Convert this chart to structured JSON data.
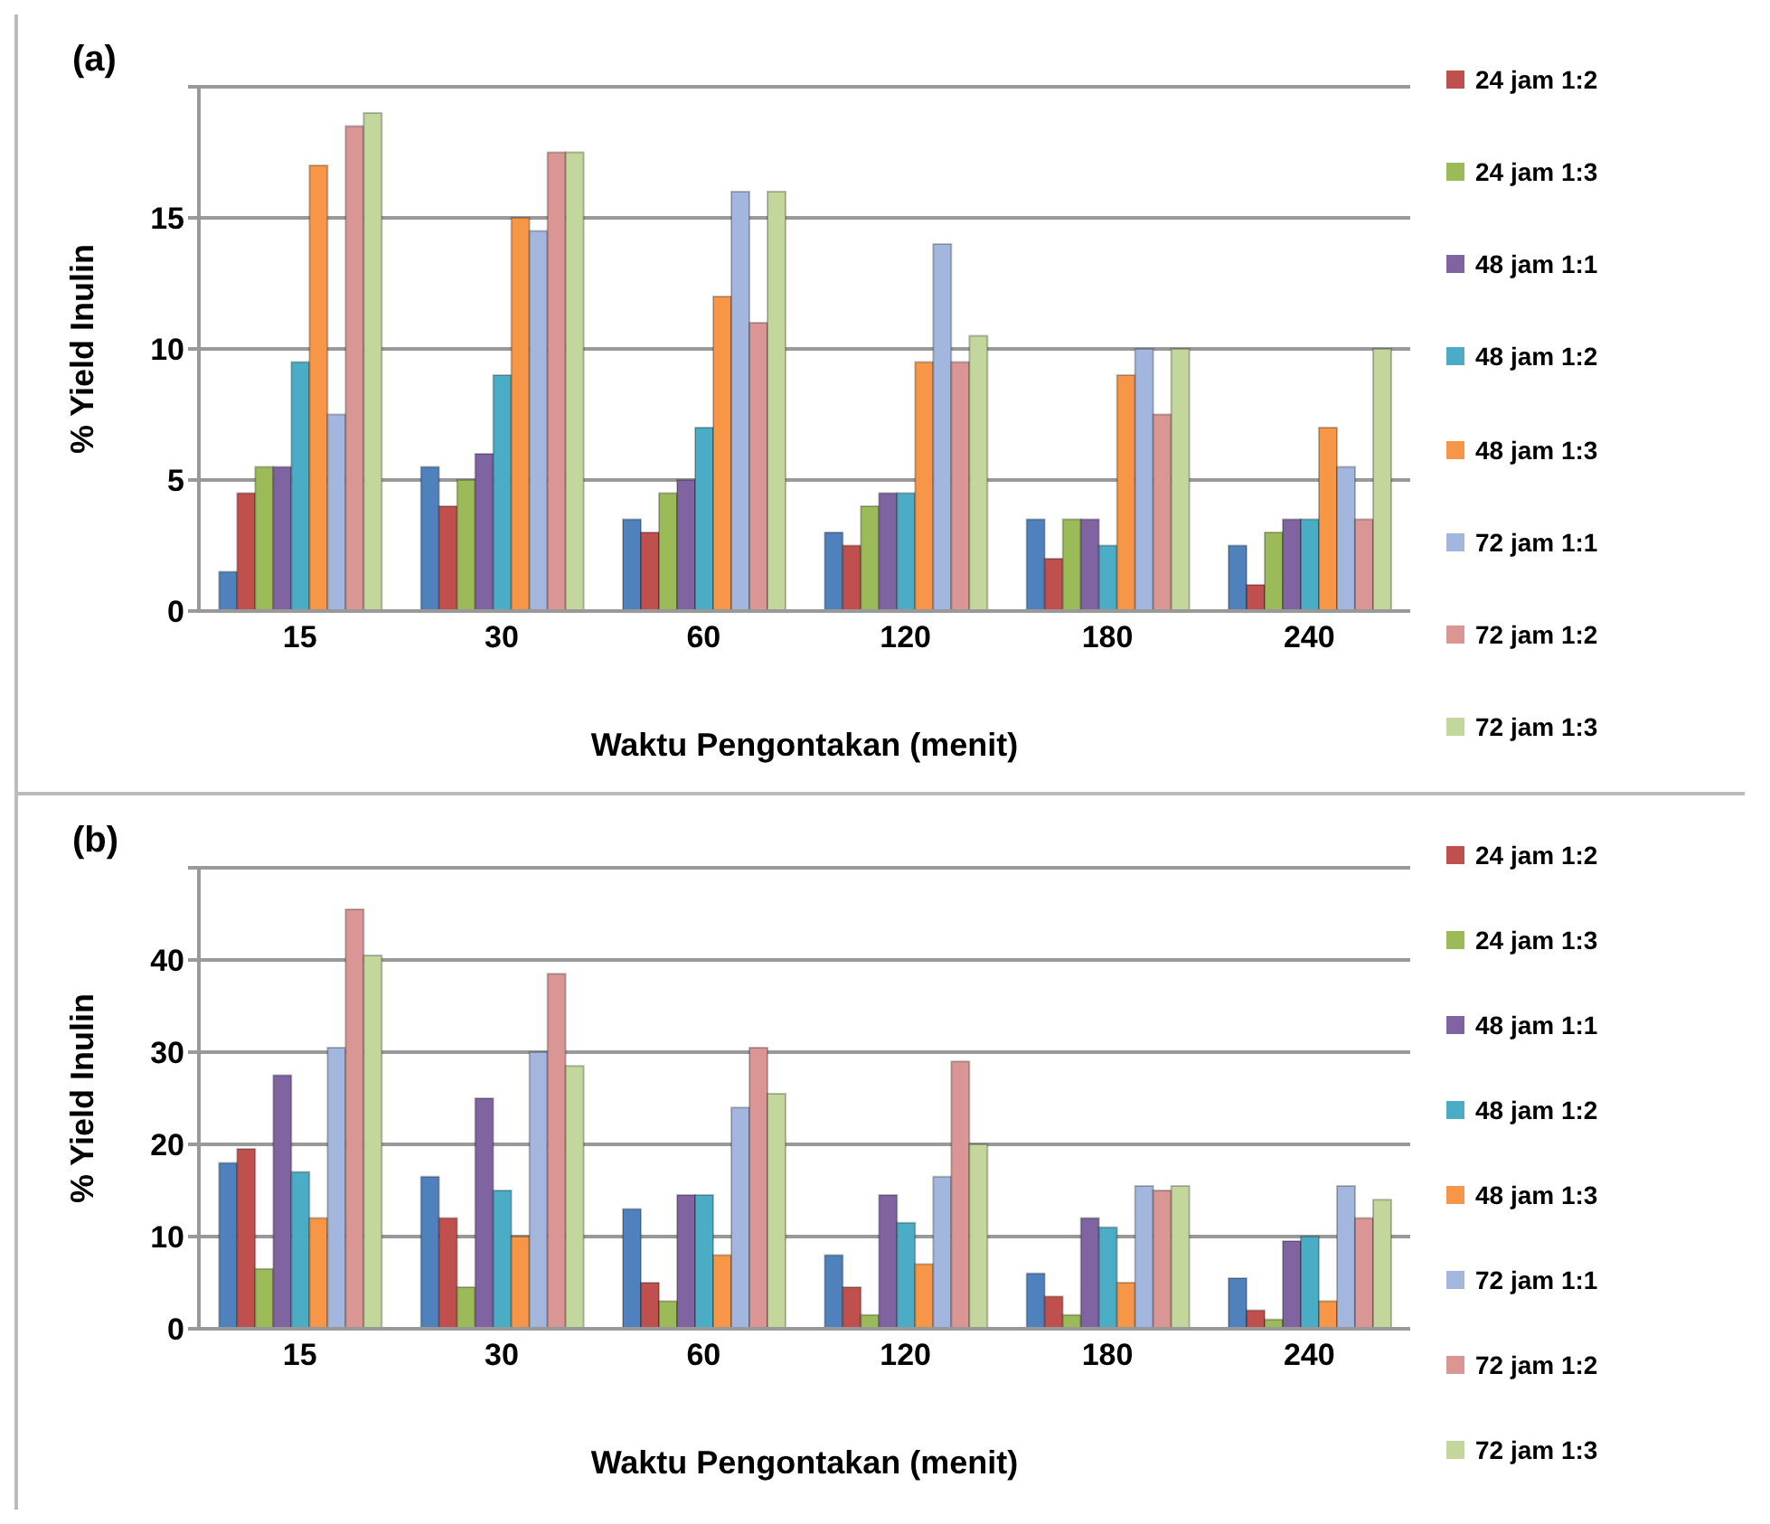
{
  "chart_data": [
    {
      "type": "bar",
      "title": "(a)",
      "xlabel": "Waktu Pengontakan (menit)",
      "ylabel": "% Yield Inulin",
      "categories": [
        "15",
        "30",
        "60",
        "120",
        "180",
        "240"
      ],
      "ylim": [
        0,
        20
      ],
      "yticks": [
        0,
        5,
        10,
        15,
        {
          "value": 20,
          "label": null
        }
      ],
      "grid": "y",
      "legend": "right",
      "series": [
        {
          "color": "#4f81bd",
          "values": [
            1.5,
            5.5,
            3.5,
            3,
            3.5,
            2.5
          ]
        },
        {
          "name": "24 jam 1:2",
          "color": "#c0504d",
          "values": [
            4.5,
            4,
            3,
            2.5,
            2,
            1
          ]
        },
        {
          "name": "24 jam 1:3",
          "color": "#9bbb59",
          "values": [
            5.5,
            5,
            4.5,
            4,
            3.5,
            3
          ]
        },
        {
          "name": "48 jam 1:1",
          "color": "#8064a2",
          "values": [
            5.5,
            6,
            5,
            4.5,
            3.5,
            3.5
          ]
        },
        {
          "name": "48 jam 1:2",
          "color": "#4bacc6",
          "values": [
            9.5,
            9,
            7,
            4.5,
            2.5,
            3.5
          ]
        },
        {
          "name": "48 jam 1:3",
          "color": "#f79646",
          "values": [
            17,
            15,
            12,
            9.5,
            9,
            7
          ]
        },
        {
          "name": "72 jam 1:1",
          "color": "#a3b6dd",
          "values": [
            7.5,
            14.5,
            16,
            14,
            10,
            5.5
          ]
        },
        {
          "name": "72 jam 1:2",
          "color": "#d99694",
          "values": [
            18.5,
            17.5,
            11,
            9.5,
            7.5,
            3.5
          ]
        },
        {
          "name": "72 jam 1:3",
          "color": "#c3d69b",
          "values": [
            19,
            17.5,
            16,
            10.5,
            10,
            10
          ]
        }
      ]
    },
    {
      "type": "bar",
      "title": "(b)",
      "xlabel": "Waktu Pengontakan (menit)",
      "ylabel": "% Yield Inulin",
      "categories": [
        "15",
        "30",
        "60",
        "120",
        "180",
        "240"
      ],
      "ylim": [
        0,
        50
      ],
      "yticks": [
        0,
        10,
        20,
        30,
        40,
        {
          "value": 50,
          "label": null
        }
      ],
      "grid": "y",
      "legend": "right",
      "series": [
        {
          "color": "#4f81bd",
          "values": [
            18,
            16.5,
            13,
            8,
            6,
            5.5
          ]
        },
        {
          "name": "24 jam 1:2",
          "color": "#c0504d",
          "values": [
            19.5,
            12,
            5,
            4.5,
            3.5,
            2
          ]
        },
        {
          "name": "24 jam 1:3",
          "color": "#9bbb59",
          "values": [
            6.5,
            4.5,
            3,
            1.5,
            1.5,
            1
          ]
        },
        {
          "name": "48 jam 1:1",
          "color": "#8064a2",
          "values": [
            27.5,
            25,
            14.5,
            14.5,
            12,
            9.5
          ]
        },
        {
          "name": "48 jam 1:2",
          "color": "#4bacc6",
          "values": [
            17,
            15,
            14.5,
            11.5,
            11,
            10
          ]
        },
        {
          "name": "48 jam 1:3",
          "color": "#f79646",
          "values": [
            12,
            10,
            8,
            7,
            5,
            3
          ]
        },
        {
          "name": "72 jam 1:1",
          "color": "#a3b6dd",
          "values": [
            30.5,
            30,
            24,
            16.5,
            15.5,
            15.5
          ]
        },
        {
          "name": "72 jam 1:2",
          "color": "#d99694",
          "values": [
            45.5,
            38.5,
            30.5,
            29,
            15,
            12
          ]
        },
        {
          "name": "72 jam 1:3",
          "color": "#c3d69b",
          "values": [
            40.5,
            28.5,
            25.5,
            20,
            15.5,
            14
          ]
        }
      ]
    }
  ]
}
